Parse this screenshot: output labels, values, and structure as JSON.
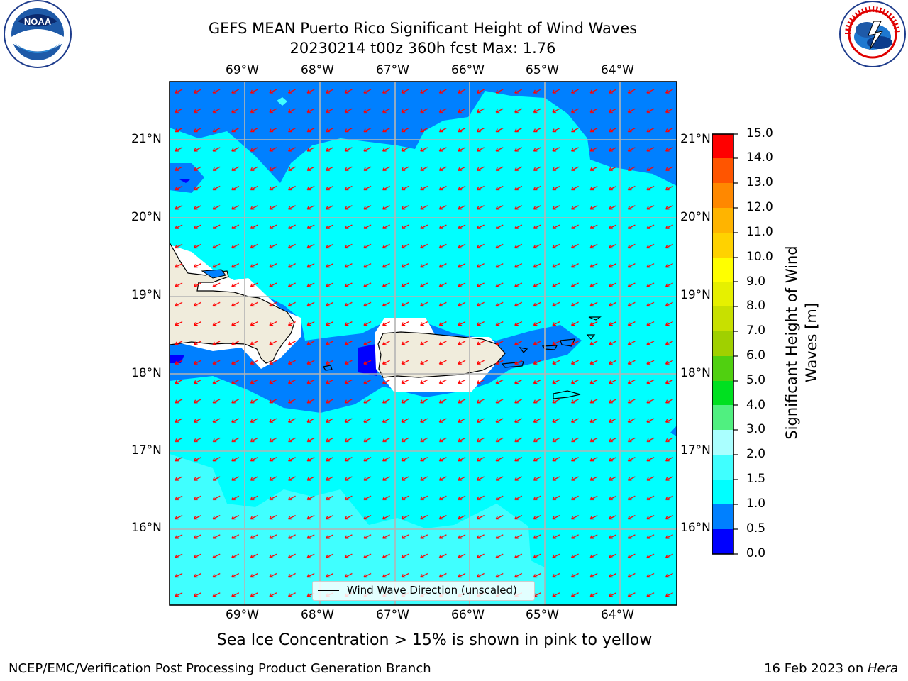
{
  "title_line1": "GEFS MEAN Puerto Rico Significant Height of Wind Waves",
  "title_line2": "20230214 t00z 360h fcst   Max: 1.76",
  "caption": "Sea Ice Concentration > 15% is shown in pink to yellow",
  "credit_left": "NCEP/EMC/Verification Post Processing Product Generation Branch",
  "credit_right_prefix": "16 Feb 2023 on ",
  "credit_right_host": "Hera",
  "logo_left": "noaa-logo",
  "logo_right": "nws-logo",
  "logo_left_text": "NOAA",
  "map": {
    "lon_labels": [
      "69°W",
      "68°W",
      "67°W",
      "66°W",
      "65°W",
      "64°W"
    ],
    "lat_labels": [
      "21°N",
      "20°N",
      "19°N",
      "18°N",
      "17°N",
      "16°N"
    ],
    "arrow_color": "#ff0000",
    "land_color": "#f0ecdc",
    "legend_label": "Wind Wave Direction (unscaled)"
  },
  "colorbar": {
    "label": "Significant Height of Wind Waves [m]",
    "ticks": [
      "0.0",
      "0.5",
      "1.0",
      "1.5",
      "2.0",
      "3.0",
      "4.0",
      "5.0",
      "6.0",
      "7.0",
      "8.0",
      "9.0",
      "10.0",
      "11.0",
      "12.0",
      "13.0",
      "14.0",
      "15.0"
    ],
    "colors": [
      "#0000ff",
      "#0080ff",
      "#00ffff",
      "#40ffff",
      "#aaffff",
      "#50f080",
      "#00e020",
      "#50d010",
      "#a0d000",
      "#c8e000",
      "#e6f000",
      "#ffff00",
      "#ffd200",
      "#ffb400",
      "#ff8800",
      "#ff5500",
      "#ff2a00",
      "#ff0000"
    ]
  }
}
